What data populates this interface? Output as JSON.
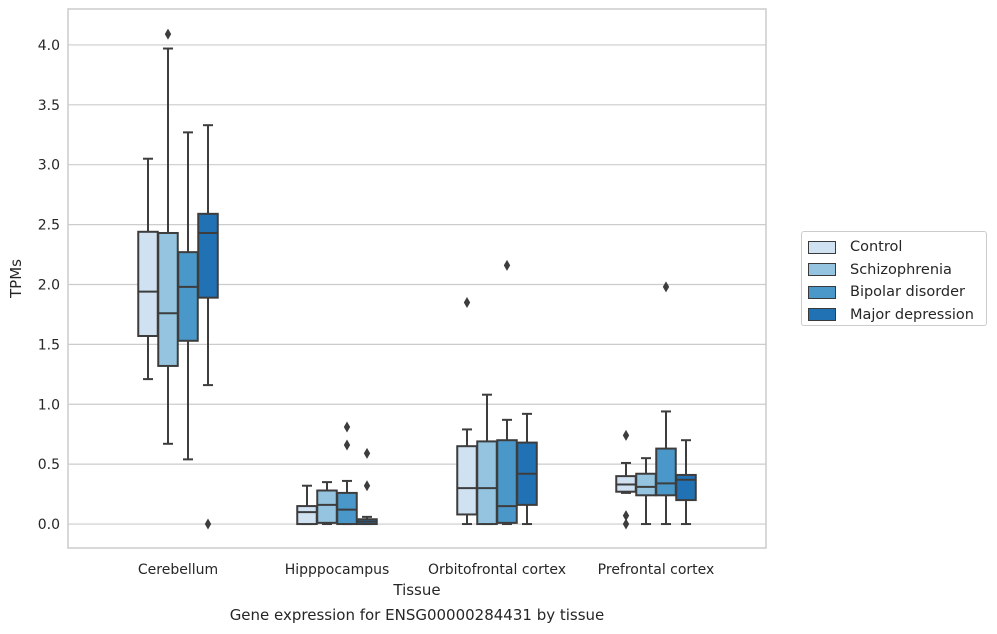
{
  "caption": "Gene expression for ENSG00000284431 by tissue",
  "chart_data": {
    "type": "box",
    "xlabel": "Tissue",
    "ylabel": "TPMs",
    "ylim": [
      -0.2,
      4.3
    ],
    "yticks": [
      "0.0",
      "0.5",
      "1.0",
      "1.5",
      "2.0",
      "2.5",
      "3.0",
      "3.5",
      "4.0"
    ],
    "categories": [
      "Cerebellum",
      "Hipppocampus",
      "Orbitofrontal cortex",
      "Prefrontal cortex"
    ],
    "grid": "horizontal",
    "legend_position": "right",
    "series": [
      {
        "name": "Control",
        "color": "#d0e1f2",
        "boxes": [
          {
            "whislo": 1.21,
            "q1": 1.57,
            "med": 1.94,
            "q3": 2.44,
            "whishi": 3.05,
            "fliers": []
          },
          {
            "whislo": 0.0,
            "q1": 0.0,
            "med": 0.1,
            "q3": 0.15,
            "whishi": 0.32,
            "fliers": []
          },
          {
            "whislo": 0.0,
            "q1": 0.08,
            "med": 0.3,
            "q3": 0.65,
            "whishi": 0.79,
            "fliers": [
              1.85
            ]
          },
          {
            "whislo": 0.26,
            "q1": 0.27,
            "med": 0.33,
            "q3": 0.4,
            "whishi": 0.51,
            "fliers": [
              0.74,
              0.07,
              0.0
            ]
          }
        ]
      },
      {
        "name": "Schizophrenia",
        "color": "#94c4df",
        "boxes": [
          {
            "whislo": 0.67,
            "q1": 1.32,
            "med": 1.76,
            "q3": 2.43,
            "whishi": 3.97,
            "fliers": [
              4.09
            ]
          },
          {
            "whislo": 0.0,
            "q1": 0.01,
            "med": 0.16,
            "q3": 0.28,
            "whishi": 0.35,
            "fliers": []
          },
          {
            "whislo": 0.0,
            "q1": 0.0,
            "med": 0.3,
            "q3": 0.69,
            "whishi": 1.08,
            "fliers": []
          },
          {
            "whislo": 0.0,
            "q1": 0.24,
            "med": 0.31,
            "q3": 0.42,
            "whishi": 0.55,
            "fliers": []
          }
        ]
      },
      {
        "name": "Bipolar disorder",
        "color": "#4a98c9",
        "boxes": [
          {
            "whislo": 0.54,
            "q1": 1.53,
            "med": 1.98,
            "q3": 2.27,
            "whishi": 3.27,
            "fliers": []
          },
          {
            "whislo": 0.0,
            "q1": 0.0,
            "med": 0.12,
            "q3": 0.26,
            "whishi": 0.36,
            "fliers": [
              0.81,
              0.66
            ]
          },
          {
            "whislo": 0.0,
            "q1": 0.01,
            "med": 0.15,
            "q3": 0.7,
            "whishi": 0.87,
            "fliers": [
              2.16
            ]
          },
          {
            "whislo": 0.0,
            "q1": 0.24,
            "med": 0.34,
            "q3": 0.63,
            "whishi": 0.94,
            "fliers": [
              1.98
            ]
          }
        ]
      },
      {
        "name": "Major depression",
        "color": "#2171b5",
        "boxes": [
          {
            "whislo": 1.16,
            "q1": 1.89,
            "med": 2.43,
            "q3": 2.59,
            "whishi": 3.33,
            "fliers": [
              0.0
            ]
          },
          {
            "whislo": 0.0,
            "q1": 0.0,
            "med": 0.02,
            "q3": 0.04,
            "whishi": 0.06,
            "fliers": [
              0.59,
              0.32
            ]
          },
          {
            "whislo": 0.0,
            "q1": 0.16,
            "med": 0.42,
            "q3": 0.68,
            "whishi": 0.92,
            "fliers": []
          },
          {
            "whislo": 0.0,
            "q1": 0.2,
            "med": 0.37,
            "q3": 0.41,
            "whishi": 0.7,
            "fliers": []
          }
        ]
      }
    ]
  }
}
